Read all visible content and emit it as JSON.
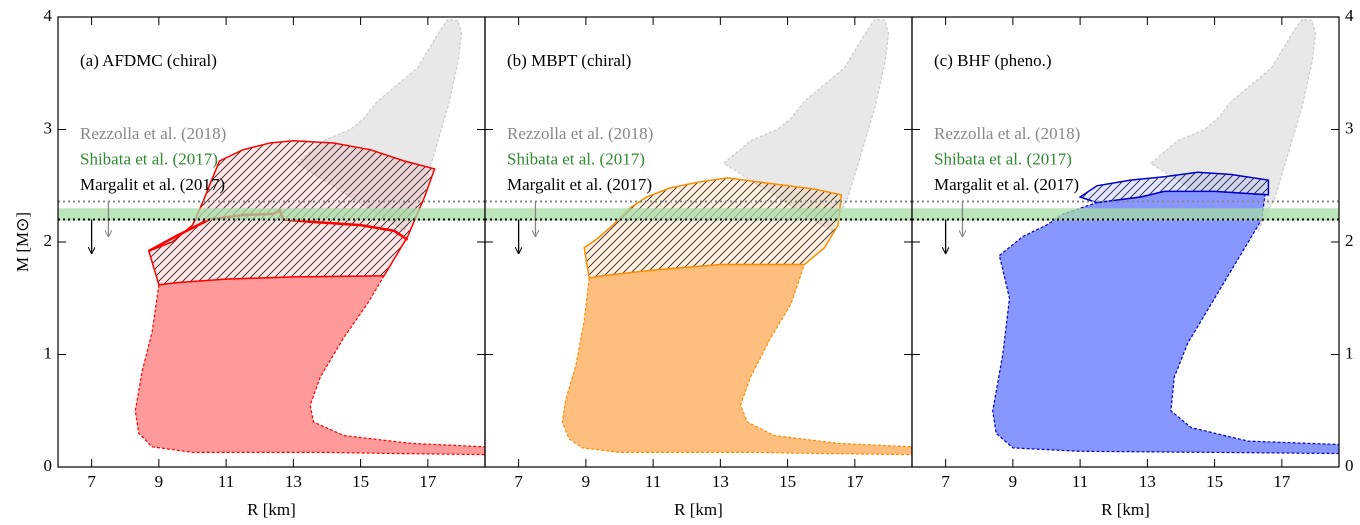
{
  "ylabel": "M [M⊙]",
  "xlabel": "R [km]",
  "references": [
    {
      "label": "Rezzolla et al. (2018)",
      "color": "#888888",
      "value": 2.36,
      "arrow_r": 7.5,
      "arrow_to": 2.05
    },
    {
      "label": "Shibata et al. (2017)",
      "color": "#2e8b2e",
      "band": [
        2.19,
        2.3
      ],
      "band_color": "#a6dca6"
    },
    {
      "label": "Margalit et al. (2017)",
      "color": "#000000",
      "value": 2.2,
      "arrow_r": 7,
      "arrow_to": 1.9
    }
  ],
  "chart_data": [
    {
      "type": "area",
      "title": "(a) AFDMC (chiral)",
      "xlim": [
        6,
        18.7
      ],
      "ylim": [
        0,
        4
      ],
      "xticks": [
        7,
        9,
        11,
        13,
        15,
        17
      ],
      "yticks": [
        0,
        1,
        2,
        3,
        4
      ],
      "series": [
        {
          "style": "fill",
          "color": "#cccccc",
          "fill": "#e8e8e8",
          "x": [
            16.3,
            16.8,
            17.2,
            17.6,
            17.9,
            18.0,
            17.9,
            17.6,
            17.3,
            17.0,
            16.7,
            16.3,
            15.9,
            15.5,
            15.1,
            14.7,
            14.3,
            13.9,
            13.5,
            13.1
          ],
          "y": [
            2.1,
            2.4,
            2.8,
            3.2,
            3.6,
            3.85,
            3.97,
            3.98,
            3.85,
            3.7,
            3.55,
            3.45,
            3.35,
            3.25,
            3.1,
            3.0,
            2.95,
            2.9,
            2.8,
            2.7
          ]
        },
        {
          "style": "fill",
          "color": "#ff0000",
          "fill": "#ff9a9a",
          "x": [
            9.0,
            8.8,
            8.5,
            8.3,
            8.4,
            8.8,
            10,
            12,
            14,
            16,
            18.7,
            18.7,
            16.5,
            14.5,
            13.6,
            13.5,
            13.8,
            14.5,
            15.2,
            15.7,
            13,
            11,
            9.6
          ],
          "y": [
            1.62,
            1.2,
            0.85,
            0.5,
            0.3,
            0.18,
            0.13,
            0.13,
            0.13,
            0.12,
            0.11,
            0.18,
            0.21,
            0.28,
            0.4,
            0.55,
            0.8,
            1.15,
            1.45,
            1.7,
            1.69,
            1.67,
            1.64
          ]
        },
        {
          "style": "hatch",
          "color": "#ff0000",
          "fill": "#ff9a9a",
          "x": [
            9.0,
            8.7,
            9.4,
            10.0,
            10.3,
            10.5,
            10.8,
            11.5,
            12.3,
            13,
            14.2,
            15.3,
            16.3,
            17.2,
            16.9,
            16.4,
            15.7,
            13,
            11,
            9.6
          ],
          "y": [
            1.62,
            1.92,
            2.0,
            2.15,
            2.35,
            2.5,
            2.72,
            2.82,
            2.88,
            2.9,
            2.88,
            2.82,
            2.72,
            2.65,
            2.4,
            2.05,
            1.7,
            1.69,
            1.67,
            1.64
          ]
        },
        {
          "style": "line",
          "color": "#ff0000",
          "x": [
            8.7,
            9.5,
            10.5,
            11.5,
            12.4,
            12.6,
            12.7,
            13.5,
            15,
            16,
            16.4
          ],
          "y": [
            1.92,
            2.05,
            2.2,
            2.24,
            2.25,
            2.28,
            2.2,
            2.18,
            2.15,
            2.1,
            2.02
          ]
        }
      ]
    },
    {
      "type": "area",
      "title": "(b) MBPT (chiral)",
      "xlim": [
        6,
        18.7
      ],
      "ylim": [
        0,
        4
      ],
      "xticks": [
        7,
        9,
        11,
        13,
        15,
        17
      ],
      "yticks": [
        0,
        1,
        2,
        3,
        4
      ],
      "series": [
        {
          "style": "fill",
          "color": "#cccccc",
          "fill": "#e8e8e8",
          "x": [
            16.3,
            16.8,
            17.2,
            17.6,
            17.9,
            18.0,
            17.9,
            17.6,
            17.3,
            17.0,
            16.7,
            16.3,
            15.9,
            15.5,
            15.1,
            14.7,
            14.3,
            13.9,
            13.5,
            13.1
          ],
          "y": [
            2.1,
            2.4,
            2.8,
            3.2,
            3.6,
            3.85,
            3.97,
            3.98,
            3.85,
            3.7,
            3.55,
            3.45,
            3.35,
            3.25,
            3.1,
            3.0,
            2.95,
            2.9,
            2.8,
            2.7
          ]
        },
        {
          "style": "fill",
          "color": "#ff8c00",
          "fill": "#ffbe7d",
          "x": [
            9.1,
            8.95,
            8.7,
            8.4,
            8.3,
            8.5,
            8.9,
            10,
            12,
            14,
            16,
            18.7,
            18.7,
            16.5,
            14.6,
            13.8,
            13.6,
            13.9,
            14.5,
            15.1,
            15.5,
            13,
            11,
            9.5
          ],
          "y": [
            1.68,
            1.3,
            0.9,
            0.6,
            0.4,
            0.25,
            0.17,
            0.13,
            0.13,
            0.13,
            0.12,
            0.11,
            0.18,
            0.21,
            0.28,
            0.4,
            0.55,
            0.8,
            1.15,
            1.45,
            1.8,
            1.8,
            1.75,
            1.7
          ]
        },
        {
          "style": "hatch",
          "color": "#ff8c00",
          "fill": "#ffbe7d",
          "x": [
            9.1,
            8.95,
            9.3,
            9.8,
            10.3,
            10.8,
            11.5,
            12.3,
            13.2,
            14.5,
            15.8,
            16.6,
            16.5,
            16.1,
            15.5,
            13,
            11,
            9.5
          ],
          "y": [
            1.68,
            1.95,
            2.02,
            2.15,
            2.3,
            2.4,
            2.48,
            2.53,
            2.57,
            2.52,
            2.47,
            2.42,
            2.15,
            1.95,
            1.8,
            1.8,
            1.75,
            1.7
          ]
        }
      ]
    },
    {
      "type": "area",
      "title": "(c) BHF (pheno.)",
      "xlim": [
        6,
        18.7
      ],
      "ylim": [
        0,
        4
      ],
      "xticks": [
        7,
        9,
        11,
        13,
        15,
        17
      ],
      "yticks": [
        0,
        1,
        2,
        3,
        4
      ],
      "series": [
        {
          "style": "fill",
          "color": "#cccccc",
          "fill": "#e8e8e8",
          "x": [
            16.3,
            16.8,
            17.2,
            17.6,
            17.9,
            18.0,
            17.9,
            17.6,
            17.3,
            17.0,
            16.7,
            16.3,
            15.9,
            15.5,
            15.1,
            14.7,
            14.3,
            13.9,
            13.5,
            13.1
          ],
          "y": [
            2.1,
            2.4,
            2.8,
            3.2,
            3.6,
            3.85,
            3.97,
            3.98,
            3.85,
            3.7,
            3.55,
            3.45,
            3.35,
            3.25,
            3.1,
            3.0,
            2.95,
            2.9,
            2.8,
            2.7
          ]
        },
        {
          "style": "fill",
          "color": "#0000cc",
          "fill": "#8896ff",
          "x": [
            8.6,
            9.3,
            10,
            10.5,
            11.5,
            12.8,
            13.5,
            15,
            16.5,
            16.4,
            15.8,
            15,
            14.2,
            13.8,
            13.7,
            14.3,
            16,
            18.7,
            18.7,
            15,
            11,
            9,
            8.5,
            8.4,
            8.7,
            8.9
          ],
          "y": [
            1.88,
            2.05,
            2.15,
            2.25,
            2.35,
            2.4,
            2.45,
            2.45,
            2.42,
            2.2,
            1.9,
            1.5,
            1.1,
            0.8,
            0.5,
            0.35,
            0.23,
            0.2,
            0.12,
            0.13,
            0.14,
            0.17,
            0.3,
            0.5,
            1.0,
            1.5
          ]
        },
        {
          "style": "hatch",
          "color": "#0000cc",
          "fill": "#8896ff",
          "x": [
            11,
            11.5,
            12.5,
            13.5,
            14.5,
            15.5,
            16.6,
            16.6,
            15,
            13.5,
            12.8,
            11.5
          ],
          "y": [
            2.4,
            2.5,
            2.55,
            2.58,
            2.62,
            2.6,
            2.55,
            2.42,
            2.45,
            2.45,
            2.4,
            2.35
          ]
        }
      ],
      "right_ticks": true
    }
  ]
}
